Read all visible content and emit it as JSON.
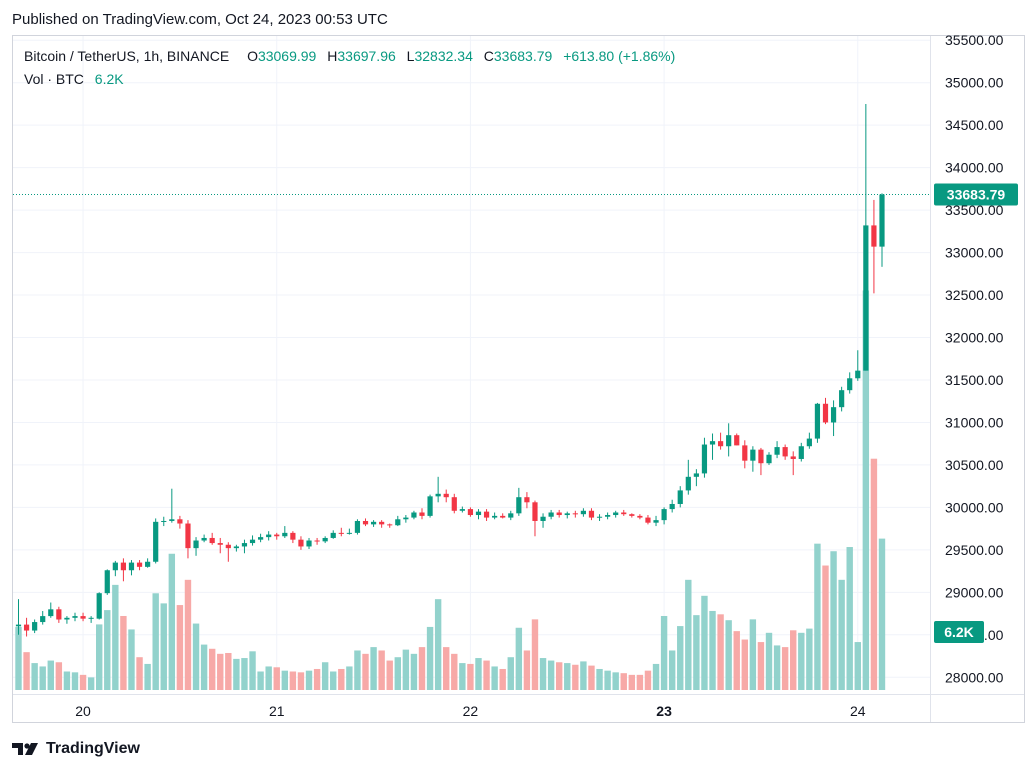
{
  "published": "Published on TradingView.com, Oct 24, 2023 00:53 UTC",
  "legend": {
    "symbol": "Bitcoin / TetherUS, 1h, BINANCE",
    "o_label": "O",
    "o_value": "33069.99",
    "h_label": "H",
    "h_value": "33697.96",
    "l_label": "L",
    "l_value": "32832.34",
    "c_label": "C",
    "c_value": "33683.79",
    "change": "+613.80 (+1.86%)",
    "vol_label": "Vol · BTC",
    "vol_value": "6.2K"
  },
  "brand": "TradingView",
  "colors": {
    "up": "#089981",
    "down": "#f23645",
    "vol_up": "#92d2cc",
    "vol_down": "#f7a9a7",
    "grid": "#f0f3fa"
  },
  "chart_data": {
    "type": "candlestick",
    "y_ticks": [
      "28000.00",
      "28500.00",
      "29000.00",
      "29500.00",
      "30000.00",
      "30500.00",
      "31000.00",
      "31500.00",
      "32000.00",
      "32500.00",
      "33000.00",
      "33500.00",
      "34000.00",
      "34500.00",
      "35000.00",
      "35500.00"
    ],
    "ylim": [
      27850,
      35550
    ],
    "x_ticks": [
      {
        "label": "20",
        "index": 8,
        "bold": false
      },
      {
        "label": "21",
        "index": 32,
        "bold": false
      },
      {
        "label": "22",
        "index": 56,
        "bold": false
      },
      {
        "label": "23",
        "index": 80,
        "bold": true
      },
      {
        "label": "24",
        "index": 104,
        "bold": false
      }
    ],
    "last_price_label": "33683.79",
    "last_price": 33683.79,
    "volume_label": "6.2K",
    "volume_max": 19.5,
    "candles": [
      [
        28600,
        28920,
        28500,
        28620,
        7.5
      ],
      [
        28620,
        28700,
        28480,
        28550,
        4.5
      ],
      [
        28550,
        28680,
        28520,
        28650,
        3.2
      ],
      [
        28650,
        28780,
        28620,
        28720,
        2.8
      ],
      [
        28720,
        28880,
        28700,
        28800,
        3.5
      ],
      [
        28800,
        28830,
        28640,
        28680,
        3.3
      ],
      [
        28680,
        28720,
        28630,
        28700,
        2.2
      ],
      [
        28700,
        28760,
        28660,
        28720,
        2.1
      ],
      [
        28720,
        28760,
        28660,
        28690,
        1.8
      ],
      [
        28690,
        28720,
        28640,
        28700,
        1.5
      ],
      [
        28690,
        29000,
        28680,
        28990,
        7.8
      ],
      [
        28990,
        29270,
        28970,
        29260,
        9.5
      ],
      [
        29260,
        29370,
        29190,
        29350,
        12.5
      ],
      [
        29350,
        29400,
        29130,
        29260,
        8.8
      ],
      [
        29260,
        29380,
        29200,
        29350,
        7.2
      ],
      [
        29350,
        29380,
        29260,
        29300,
        3.9
      ],
      [
        29300,
        29400,
        29290,
        29360,
        3.1
      ],
      [
        29360,
        29870,
        29340,
        29830,
        11.5
      ],
      [
        29830,
        29890,
        29780,
        29840,
        10.3
      ],
      [
        29840,
        30220,
        29820,
        29860,
        16.2
      ],
      [
        29860,
        29900,
        29750,
        29810,
        10.1
      ],
      [
        29810,
        29850,
        29400,
        29520,
        13.1
      ],
      [
        29520,
        29650,
        29430,
        29610,
        7.9
      ],
      [
        29610,
        29680,
        29590,
        29640,
        5.4
      ],
      [
        29640,
        29700,
        29560,
        29580,
        4.9
      ],
      [
        29580,
        29640,
        29460,
        29560,
        4.3
      ],
      [
        29560,
        29590,
        29360,
        29520,
        4.4
      ],
      [
        29520,
        29560,
        29480,
        29540,
        3.7
      ],
      [
        29540,
        29620,
        29460,
        29580,
        3.8
      ],
      [
        29580,
        29670,
        29550,
        29620,
        4.6
      ],
      [
        29620,
        29690,
        29590,
        29650,
        2.2
      ],
      [
        29650,
        29720,
        29610,
        29680,
        2.8
      ],
      [
        29680,
        29700,
        29620,
        29660,
        2.7
      ],
      [
        29660,
        29780,
        29640,
        29700,
        2.3
      ],
      [
        29700,
        29720,
        29580,
        29620,
        2.2
      ],
      [
        29620,
        29660,
        29500,
        29540,
        2.1
      ],
      [
        29540,
        29640,
        29510,
        29610,
        2.3
      ],
      [
        29610,
        29640,
        29560,
        29600,
        2.5
      ],
      [
        29600,
        29660,
        29580,
        29640,
        3.3
      ],
      [
        29640,
        29730,
        29630,
        29700,
        2.2
      ],
      [
        29700,
        29760,
        29660,
        29690,
        2.5
      ],
      [
        29690,
        29750,
        29680,
        29700,
        2.8
      ],
      [
        29700,
        29860,
        29680,
        29840,
        4.7
      ],
      [
        29840,
        29870,
        29780,
        29800,
        4.3
      ],
      [
        29800,
        29850,
        29770,
        29830,
        5.1
      ],
      [
        29830,
        29850,
        29760,
        29800,
        4.7
      ],
      [
        29800,
        29810,
        29760,
        29790,
        3.5
      ],
      [
        29790,
        29900,
        29780,
        29860,
        3.9
      ],
      [
        29860,
        29910,
        29820,
        29880,
        4.8
      ],
      [
        29880,
        29960,
        29860,
        29940,
        4.3
      ],
      [
        29940,
        29990,
        29860,
        29900,
        5.1
      ],
      [
        29900,
        30150,
        29880,
        30130,
        7.5
      ],
      [
        30130,
        30360,
        30060,
        30160,
        10.8
      ],
      [
        30160,
        30210,
        30060,
        30120,
        5.1
      ],
      [
        30120,
        30160,
        29930,
        29960,
        4.3
      ],
      [
        29960,
        30010,
        29940,
        29980,
        3.2
      ],
      [
        29980,
        30000,
        29890,
        29910,
        3.1
      ],
      [
        29910,
        29980,
        29860,
        29950,
        3.8
      ],
      [
        29950,
        29980,
        29840,
        29880,
        3.5
      ],
      [
        29880,
        29940,
        29860,
        29900,
        2.8
      ],
      [
        29900,
        29930,
        29870,
        29880,
        2.5
      ],
      [
        29880,
        29960,
        29850,
        29930,
        3.9
      ],
      [
        29930,
        30230,
        29900,
        30120,
        7.4
      ],
      [
        30120,
        30180,
        29990,
        30060,
        4.7
      ],
      [
        30060,
        30080,
        29660,
        29840,
        8.4
      ],
      [
        29840,
        29930,
        29760,
        29890,
        3.8
      ],
      [
        29890,
        29970,
        29860,
        29940,
        3.5
      ],
      [
        29940,
        29970,
        29880,
        29910,
        3.3
      ],
      [
        29910,
        29950,
        29870,
        29930,
        3.2
      ],
      [
        29930,
        29960,
        29880,
        29920,
        3.0
      ],
      [
        29920,
        29990,
        29890,
        29960,
        3.4
      ],
      [
        29960,
        29990,
        29850,
        29880,
        2.9
      ],
      [
        29880,
        29920,
        29840,
        29890,
        2.5
      ],
      [
        29890,
        29940,
        29860,
        29910,
        2.3
      ],
      [
        29910,
        29960,
        29880,
        29940,
        2.1
      ],
      [
        29940,
        29970,
        29900,
        29920,
        2.0
      ],
      [
        29920,
        29930,
        29880,
        29900,
        1.8
      ],
      [
        29900,
        29920,
        29860,
        29880,
        1.8
      ],
      [
        29880,
        29910,
        29800,
        29820,
        2.3
      ],
      [
        29820,
        29900,
        29780,
        29850,
        3.1
      ],
      [
        29850,
        30000,
        29800,
        29980,
        8.8
      ],
      [
        29980,
        30090,
        29940,
        30040,
        4.7
      ],
      [
        30040,
        30250,
        30000,
        30200,
        7.6
      ],
      [
        30200,
        30560,
        30150,
        30360,
        13.1
      ],
      [
        30360,
        30450,
        30250,
        30400,
        8.9
      ],
      [
        30400,
        30820,
        30350,
        30740,
        11.2
      ],
      [
        30740,
        30870,
        30560,
        30780,
        9.4
      ],
      [
        30780,
        30880,
        30680,
        30720,
        9.0
      ],
      [
        30720,
        30990,
        30600,
        30850,
        8.3
      ],
      [
        30850,
        30870,
        30730,
        30730,
        7.0
      ],
      [
        30730,
        30790,
        30460,
        30550,
        6.0
      ],
      [
        30550,
        30720,
        30420,
        30680,
        8.4
      ],
      [
        30680,
        30700,
        30380,
        30520,
        5.7
      ],
      [
        30520,
        30650,
        30500,
        30620,
        6.8
      ],
      [
        30620,
        30780,
        30580,
        30710,
        5.3
      ],
      [
        30710,
        30740,
        30560,
        30600,
        5.1
      ],
      [
        30600,
        30660,
        30380,
        30570,
        7.1
      ],
      [
        30570,
        30760,
        30540,
        30720,
        6.8
      ],
      [
        30720,
        30880,
        30690,
        30810,
        7.3
      ],
      [
        30810,
        31230,
        30760,
        31220,
        17.4
      ],
      [
        31220,
        31290,
        30980,
        31000,
        14.8
      ],
      [
        31000,
        31260,
        30840,
        31180,
        16.5
      ],
      [
        31180,
        31420,
        31130,
        31380,
        13.1
      ],
      [
        31380,
        31590,
        31340,
        31520,
        17.0
      ],
      [
        31520,
        31850,
        31490,
        31610,
        5.7
      ],
      [
        31610,
        34750,
        31610,
        33320,
        47.5
      ],
      [
        33320,
        33620,
        32520,
        33070,
        27.5
      ],
      [
        33070,
        33697.96,
        32832.34,
        33683.79,
        18.0
      ]
    ]
  }
}
